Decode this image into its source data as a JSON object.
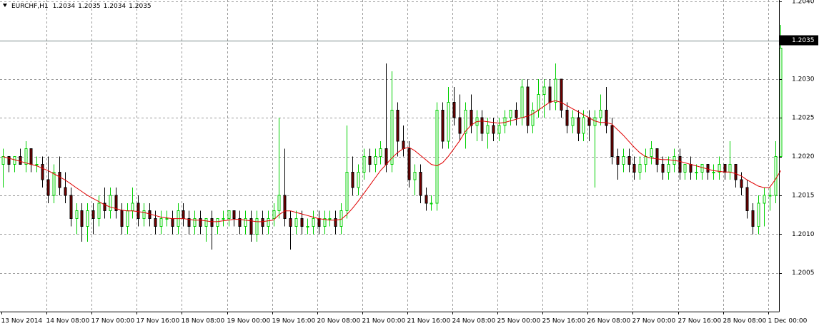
{
  "chart_data": {
    "type": "candlestick",
    "title": "EURCHF,H1",
    "header_values": [
      1.2034,
      1.2035,
      1.2034,
      1.2035
    ],
    "ylim": [
      1.2,
      1.20402
    ],
    "yticks": [
      {
        "value": 1.204,
        "label": "1.2040"
      },
      1.2035,
      {
        "value": 1.203,
        "label": "1.2030"
      },
      1.2025,
      {
        "value": 1.202,
        "label": "1.2020"
      },
      1.2015,
      {
        "value": 1.201,
        "label": "1.2010"
      },
      1.2005
    ],
    "grid": true,
    "current_price": 1.2035,
    "up_color": "#00d000",
    "down_color": "#7a0000",
    "ma_color": "#e00000",
    "x_labels": [
      "13 Nov 2014",
      "14 Nov 08:00",
      "17 Nov 00:00",
      "17 Nov 16:00",
      "18 Nov 08:00",
      "19 Nov 00:00",
      "19 Nov 16:00",
      "20 Nov 08:00",
      "21 Nov 00:00",
      "21 Nov 16:00",
      "24 Nov 08:00",
      "25 Nov 00:00",
      "25 Nov 16:00",
      "26 Nov 08:00",
      "27 Nov 00:00",
      "27 Nov 16:00",
      "28 Nov 08:00",
      "1 Dec 00:00"
    ],
    "ohlc": [
      [
        1.2019,
        1.2021,
        1.2016,
        1.202
      ],
      [
        1.202,
        1.202,
        1.2018,
        1.2019
      ],
      [
        1.2019,
        1.202,
        1.2018,
        1.202
      ],
      [
        1.202,
        1.2021,
        1.2019,
        1.2019
      ],
      [
        1.2019,
        1.2022,
        1.2018,
        1.2021
      ],
      [
        1.2021,
        1.2021,
        1.2018,
        1.2019
      ],
      [
        1.2019,
        1.202,
        1.2018,
        1.2019
      ],
      [
        1.2019,
        1.202,
        1.2016,
        1.2017
      ],
      [
        1.2017,
        1.202,
        1.2014,
        1.2015
      ],
      [
        1.2015,
        1.2019,
        1.2014,
        1.2018
      ],
      [
        1.2018,
        1.202,
        1.2015,
        1.2016
      ],
      [
        1.2016,
        1.2018,
        1.2014,
        1.2015
      ],
      [
        1.2015,
        1.2016,
        1.2011,
        1.2012
      ],
      [
        1.2012,
        1.2014,
        1.201,
        1.2013
      ],
      [
        1.2013,
        1.2014,
        1.2009,
        1.2011
      ],
      [
        1.2011,
        1.2014,
        1.2009,
        1.2013
      ],
      [
        1.2013,
        1.2014,
        1.201,
        1.2012
      ],
      [
        1.2012,
        1.2015,
        1.2011,
        1.2014
      ],
      [
        1.2014,
        1.2016,
        1.2012,
        1.2013
      ],
      [
        1.2013,
        1.2016,
        1.2012,
        1.2015
      ],
      [
        1.2015,
        1.2016,
        1.2012,
        1.2013
      ],
      [
        1.2013,
        1.2014,
        1.201,
        1.2011
      ],
      [
        1.2011,
        1.2014,
        1.201,
        1.2013
      ],
      [
        1.2013,
        1.2016,
        1.2012,
        1.2014
      ],
      [
        1.2014,
        1.2015,
        1.2011,
        1.2012
      ],
      [
        1.2012,
        1.2014,
        1.2011,
        1.2013
      ],
      [
        1.2013,
        1.2014,
        1.2011,
        1.2012
      ],
      [
        1.2012,
        1.2013,
        1.201,
        1.2011
      ],
      [
        1.2011,
        1.2013,
        1.201,
        1.2012
      ],
      [
        1.2012,
        1.2013,
        1.2011,
        1.2012
      ],
      [
        1.2012,
        1.2013,
        1.201,
        1.2011
      ],
      [
        1.2011,
        1.2014,
        1.201,
        1.2013
      ],
      [
        1.2013,
        1.2014,
        1.2011,
        1.2012
      ],
      [
        1.2012,
        1.2013,
        1.201,
        1.2011
      ],
      [
        1.2011,
        1.2013,
        1.201,
        1.2012
      ],
      [
        1.2012,
        1.2013,
        1.201,
        1.2011
      ],
      [
        1.2011,
        1.2012,
        1.2009,
        1.2012
      ],
      [
        1.2012,
        1.2013,
        1.2008,
        1.2011
      ],
      [
        1.2011,
        1.2012,
        1.201,
        1.2012
      ],
      [
        1.2012,
        1.2013,
        1.2011,
        1.2012
      ],
      [
        1.2012,
        1.2013,
        1.2011,
        1.2013
      ],
      [
        1.2013,
        1.2013,
        1.2011,
        1.2012
      ],
      [
        1.2012,
        1.2013,
        1.201,
        1.2011
      ],
      [
        1.2011,
        1.2013,
        1.201,
        1.2012
      ],
      [
        1.2012,
        1.2013,
        1.2009,
        1.201
      ],
      [
        1.201,
        1.2013,
        1.2009,
        1.2012
      ],
      [
        1.2012,
        1.2013,
        1.201,
        1.2011
      ],
      [
        1.2011,
        1.2013,
        1.201,
        1.2012
      ],
      [
        1.2012,
        1.2014,
        1.2011,
        1.2013
      ],
      [
        1.2013,
        1.2025,
        1.2012,
        1.2015
      ],
      [
        1.2015,
        1.2021,
        1.2011,
        1.2012
      ],
      [
        1.2012,
        1.2013,
        1.2008,
        1.2011
      ],
      [
        1.2011,
        1.2013,
        1.201,
        1.2012
      ],
      [
        1.2012,
        1.2013,
        1.201,
        1.2011
      ],
      [
        1.2011,
        1.2012,
        1.201,
        1.2011
      ],
      [
        1.2011,
        1.2013,
        1.201,
        1.2012
      ],
      [
        1.2012,
        1.2013,
        1.201,
        1.2011
      ],
      [
        1.2011,
        1.2013,
        1.201,
        1.2012
      ],
      [
        1.2012,
        1.2013,
        1.2011,
        1.2012
      ],
      [
        1.2012,
        1.2013,
        1.201,
        1.2011
      ],
      [
        1.2011,
        1.2014,
        1.201,
        1.2013
      ],
      [
        1.2013,
        1.2024,
        1.2012,
        1.2018
      ],
      [
        1.2018,
        1.202,
        1.2015,
        1.2016
      ],
      [
        1.2016,
        1.2019,
        1.2015,
        1.2018
      ],
      [
        1.2018,
        1.2021,
        1.2017,
        1.202
      ],
      [
        1.202,
        1.2021,
        1.2018,
        1.2019
      ],
      [
        1.2019,
        1.2021,
        1.2018,
        1.202
      ],
      [
        1.202,
        1.2022,
        1.2019,
        1.2021
      ],
      [
        1.2021,
        1.2032,
        1.2018,
        1.2019
      ],
      [
        1.2019,
        1.2031,
        1.2018,
        1.2026
      ],
      [
        1.2026,
        1.2027,
        1.202,
        1.2022
      ],
      [
        1.2022,
        1.2024,
        1.202,
        1.2021
      ],
      [
        1.2021,
        1.2022,
        1.2016,
        1.2017
      ],
      [
        1.2017,
        1.2019,
        1.2015,
        1.2018
      ],
      [
        1.2018,
        1.2019,
        1.2014,
        1.2015
      ],
      [
        1.2015,
        1.2016,
        1.2013,
        1.2014
      ],
      [
        1.2014,
        1.2015,
        1.2013,
        1.2014
      ],
      [
        1.2014,
        1.2027,
        1.2013,
        1.2026
      ],
      [
        1.2026,
        1.2027,
        1.2021,
        1.2022
      ],
      [
        1.2022,
        1.2029,
        1.2021,
        1.2027
      ],
      [
        1.2027,
        1.2029,
        1.2024,
        1.2025
      ],
      [
        1.2025,
        1.2028,
        1.2022,
        1.2023
      ],
      [
        1.2023,
        1.2027,
        1.2021,
        1.2026
      ],
      [
        1.2026,
        1.2028,
        1.2023,
        1.2024
      ],
      [
        1.2024,
        1.2026,
        1.2022,
        1.2025
      ],
      [
        1.2025,
        1.2026,
        1.2022,
        1.2023
      ],
      [
        1.2023,
        1.2025,
        1.2021,
        1.2024
      ],
      [
        1.2024,
        1.2025,
        1.2022,
        1.2023
      ],
      [
        1.2023,
        1.2025,
        1.2022,
        1.2024
      ],
      [
        1.2024,
        1.2026,
        1.2023,
        1.2025
      ],
      [
        1.2025,
        1.2026,
        1.2024,
        1.2026
      ],
      [
        1.2026,
        1.2027,
        1.2024,
        1.2025
      ],
      [
        1.2025,
        1.203,
        1.2024,
        1.2029
      ],
      [
        1.2029,
        1.203,
        1.2023,
        1.2024
      ],
      [
        1.2024,
        1.2027,
        1.2023,
        1.2026
      ],
      [
        1.2026,
        1.203,
        1.2025,
        1.2028
      ],
      [
        1.2028,
        1.203,
        1.2025,
        1.2029
      ],
      [
        1.2029,
        1.203,
        1.2026,
        1.2027
      ],
      [
        1.2027,
        1.2032,
        1.2026,
        1.203
      ],
      [
        1.203,
        1.203,
        1.2025,
        1.2026
      ],
      [
        1.2026,
        1.2027,
        1.2023,
        1.2024
      ],
      [
        1.2024,
        1.2026,
        1.2023,
        1.2025
      ],
      [
        1.2025,
        1.2026,
        1.2022,
        1.2023
      ],
      [
        1.2023,
        1.2026,
        1.2022,
        1.2025
      ],
      [
        1.2025,
        1.2026,
        1.2022,
        1.2024
      ],
      [
        1.2024,
        1.2026,
        1.2016,
        1.2025
      ],
      [
        1.2025,
        1.2028,
        1.2024,
        1.2026
      ],
      [
        1.2026,
        1.2029,
        1.2023,
        1.2024
      ],
      [
        1.2024,
        1.2025,
        1.2019,
        1.202
      ],
      [
        1.202,
        1.2021,
        1.2017,
        1.2019
      ],
      [
        1.2019,
        1.2021,
        1.2018,
        1.202
      ],
      [
        1.202,
        1.2021,
        1.2018,
        1.2019
      ],
      [
        1.2019,
        1.202,
        1.2017,
        1.2018
      ],
      [
        1.2018,
        1.202,
        1.2017,
        1.2019
      ],
      [
        1.2019,
        1.2021,
        1.2018,
        1.202
      ],
      [
        1.202,
        1.2022,
        1.2019,
        1.2021
      ],
      [
        1.2021,
        1.2021,
        1.2018,
        1.2019
      ],
      [
        1.2019,
        1.202,
        1.2017,
        1.2018
      ],
      [
        1.2018,
        1.202,
        1.2017,
        1.2019
      ],
      [
        1.2019,
        1.2021,
        1.2018,
        1.202
      ],
      [
        1.202,
        1.2021,
        1.2017,
        1.2018
      ],
      [
        1.2018,
        1.2019,
        1.2017,
        1.2019
      ],
      [
        1.2019,
        1.202,
        1.2017,
        1.2018
      ],
      [
        1.2018,
        1.2019,
        1.2017,
        1.2018
      ],
      [
        1.2018,
        1.2019,
        1.2017,
        1.2019
      ],
      [
        1.2019,
        1.2019,
        1.2017,
        1.2018
      ],
      [
        1.2018,
        1.2019,
        1.2017,
        1.2018
      ],
      [
        1.2018,
        1.202,
        1.2017,
        1.2019
      ],
      [
        1.2019,
        1.2019,
        1.2017,
        1.2018
      ],
      [
        1.2018,
        1.2022,
        1.2017,
        1.2019
      ],
      [
        1.2019,
        1.2019,
        1.2016,
        1.2017
      ],
      [
        1.2017,
        1.2018,
        1.2015,
        1.2016
      ],
      [
        1.2016,
        1.2017,
        1.2012,
        1.2013
      ],
      [
        1.2013,
        1.2014,
        1.201,
        1.2011
      ],
      [
        1.2011,
        1.2015,
        1.201,
        1.2014
      ],
      [
        1.2014,
        1.2016,
        1.2011,
        1.2015
      ],
      [
        1.2015,
        1.2016,
        1.2013,
        1.2015
      ],
      [
        1.2015,
        1.2022,
        1.2014,
        1.202
      ],
      [
        1.202,
        1.2037,
        1.202,
        1.2034
      ]
    ],
    "ma": [
      1.202,
      1.20198,
      1.20196,
      1.20194,
      1.20192,
      1.2019,
      1.20188,
      1.20185,
      1.20182,
      1.20178,
      1.20174,
      1.2017,
      1.20165,
      1.2016,
      1.20155,
      1.2015,
      1.20146,
      1.20142,
      1.20138,
      1.20135,
      1.20133,
      1.20131,
      1.2013,
      1.2013,
      1.20129,
      1.20128,
      1.20126,
      1.20124,
      1.20122,
      1.20121,
      1.2012,
      1.2012,
      1.2012,
      1.20119,
      1.20118,
      1.20118,
      1.20117,
      1.20116,
      1.20116,
      1.20117,
      1.20118,
      1.20119,
      1.20119,
      1.20118,
      1.20117,
      1.20116,
      1.20116,
      1.20117,
      1.20118,
      1.20125,
      1.2013,
      1.2013,
      1.20128,
      1.20126,
      1.20124,
      1.20122,
      1.2012,
      1.20119,
      1.20118,
      1.20118,
      1.20119,
      1.20125,
      1.20133,
      1.20142,
      1.20152,
      1.20162,
      1.20172,
      1.20182,
      1.2019,
      1.20198,
      1.20205,
      1.2021,
      1.20212,
      1.20208,
      1.20202,
      1.20196,
      1.2019,
      1.20188,
      1.20192,
      1.202,
      1.2021,
      1.2022,
      1.20232,
      1.2024,
      1.20245,
      1.20246,
      1.20245,
      1.20244,
      1.20243,
      1.20244,
      1.20246,
      1.20248,
      1.2025,
      1.20252,
      1.20255,
      1.2026,
      1.20265,
      1.2027,
      1.20272,
      1.2027,
      1.20266,
      1.20262,
      1.20258,
      1.20254,
      1.2025,
      1.20246,
      1.20244,
      1.20244,
      1.20242,
      1.20235,
      1.20228,
      1.2022,
      1.20212,
      1.20205,
      1.202,
      1.20198,
      1.20197,
      1.20196,
      1.20196,
      1.20195,
      1.20194,
      1.20192,
      1.2019,
      1.20188,
      1.20186,
      1.20184,
      1.20182,
      1.20181,
      1.2018,
      1.2018,
      1.20178,
      1.20175,
      1.2017,
      1.20166,
      1.20162,
      1.2016,
      1.2016,
      1.2017,
      1.20182
    ]
  }
}
